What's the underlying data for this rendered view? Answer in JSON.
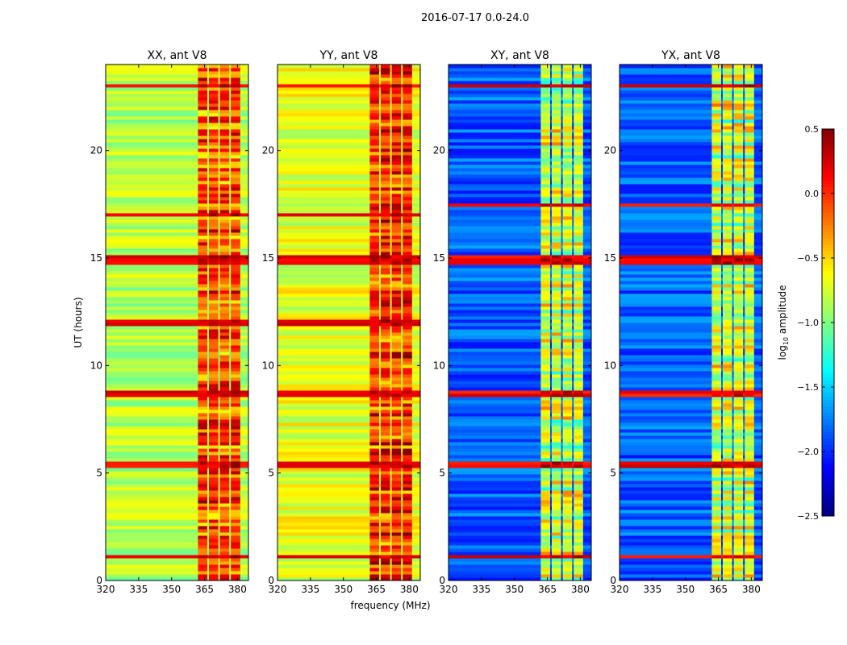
{
  "chart_data": {
    "type": "heatmap",
    "title": "2016-07-17 0.0-24.0",
    "xlabel": "frequency (MHz)",
    "ylabel": "UT (hours)",
    "xlim": [
      320,
      385
    ],
    "ylim": [
      0,
      24
    ],
    "xticks": [
      320,
      335,
      350,
      365,
      380
    ],
    "yticks": [
      0,
      5,
      10,
      15,
      20
    ],
    "colormap": "jet",
    "colorbar": {
      "label_prefix": "log",
      "label_sub": "10",
      "label_suffix": " amplitude",
      "range": [
        -2.5,
        0.5
      ],
      "ticks": [
        "0.5",
        "0.0",
        "−0.5",
        "−1.0",
        "−1.5",
        "−2.0",
        "−2.5"
      ],
      "tick_values": [
        0.5,
        0.0,
        -0.5,
        -1.0,
        -1.5,
        -2.0,
        -2.5
      ]
    },
    "panels": [
      {
        "title": "XX, ant V8",
        "base_log_amp": -0.85,
        "rfi_band_mhz": [
          362,
          382
        ],
        "rfi_log_amp": -0.1,
        "strong_rows_ut": [
          1.1,
          5.4,
          14.8,
          15.0,
          23.0,
          8.7,
          12.0,
          17.0
        ]
      },
      {
        "title": "YY, ant V8",
        "base_log_amp": -0.7,
        "rfi_band_mhz": [
          362,
          382
        ],
        "rfi_log_amp": 0.0,
        "strong_rows_ut": [
          1.1,
          5.4,
          14.8,
          15.0,
          23.0,
          8.7,
          12.0,
          17.0
        ]
      },
      {
        "title": "XY, ant V8",
        "base_log_amp": -1.85,
        "rfi_band_mhz": [
          362,
          382
        ],
        "rfi_log_amp": -0.75,
        "strong_rows_ut": [
          1.1,
          5.4,
          14.8,
          15.0,
          23.0,
          8.7,
          17.5
        ]
      },
      {
        "title": "YX, ant V8",
        "base_log_amp": -1.85,
        "rfi_band_mhz": [
          362,
          382
        ],
        "rfi_log_amp": -0.75,
        "strong_rows_ut": [
          1.1,
          5.4,
          14.8,
          15.0,
          23.0,
          8.7,
          17.5
        ]
      }
    ]
  }
}
